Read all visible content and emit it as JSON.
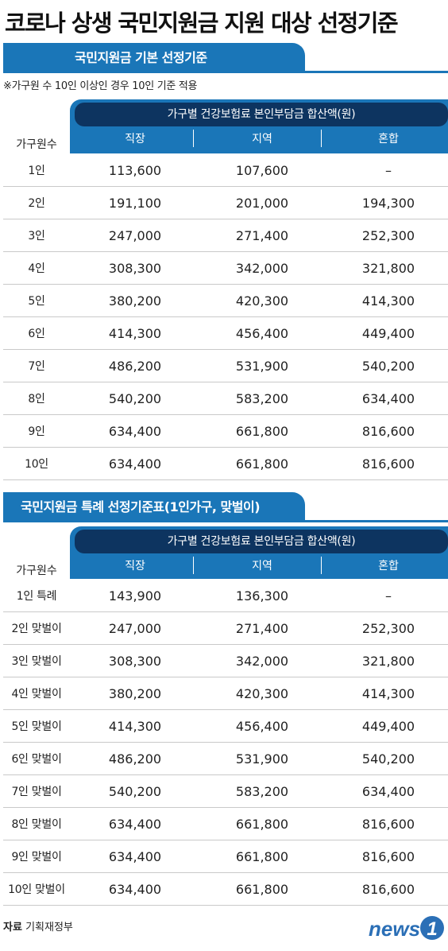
{
  "title": "코로나 상생 국민지원금 지원 대상 선정기준",
  "chart_data": [
    {
      "type": "table",
      "title": "국민지원금 기본 선정기준",
      "note": "※가구원 수 10인 이상인 경우 10인 기준 적용",
      "header_group": "가구별 건강보험료 본인부담금 합산액(원)",
      "row_header": "가구원수",
      "columns": [
        "직장",
        "지역",
        "혼합"
      ],
      "rows": [
        {
          "label": "1인",
          "values": [
            "113,600",
            "107,600",
            "–"
          ]
        },
        {
          "label": "2인",
          "values": [
            "191,100",
            "201,000",
            "194,300"
          ]
        },
        {
          "label": "3인",
          "values": [
            "247,000",
            "271,400",
            "252,300"
          ]
        },
        {
          "label": "4인",
          "values": [
            "308,300",
            "342,000",
            "321,800"
          ]
        },
        {
          "label": "5인",
          "values": [
            "380,200",
            "420,300",
            "414,300"
          ]
        },
        {
          "label": "6인",
          "values": [
            "414,300",
            "456,400",
            "449,400"
          ]
        },
        {
          "label": "7인",
          "values": [
            "486,200",
            "531,900",
            "540,200"
          ]
        },
        {
          "label": "8인",
          "values": [
            "540,200",
            "583,200",
            "634,400"
          ]
        },
        {
          "label": "9인",
          "values": [
            "634,400",
            "661,800",
            "816,600"
          ]
        },
        {
          "label": "10인",
          "values": [
            "634,400",
            "661,800",
            "816,600"
          ]
        }
      ]
    },
    {
      "type": "table",
      "title": "국민지원금 특례 선정기준표(1인가구, 맞벌이)",
      "header_group": "가구별 건강보험료 본인부담금 합산액(원)",
      "row_header": "가구원수",
      "columns": [
        "직장",
        "지역",
        "혼합"
      ],
      "rows": [
        {
          "label": "1인 특례",
          "values": [
            "143,900",
            "136,300",
            "–"
          ]
        },
        {
          "label": "2인 맞벌이",
          "values": [
            "247,000",
            "271,400",
            "252,300"
          ]
        },
        {
          "label": "3인 맞벌이",
          "values": [
            "308,300",
            "342,000",
            "321,800"
          ]
        },
        {
          "label": "4인 맞벌이",
          "values": [
            "380,200",
            "420,300",
            "414,300"
          ]
        },
        {
          "label": "5인 맞벌이",
          "values": [
            "414,300",
            "456,400",
            "449,400"
          ]
        },
        {
          "label": "6인 맞벌이",
          "values": [
            "486,200",
            "531,900",
            "540,200"
          ]
        },
        {
          "label": "7인 맞벌이",
          "values": [
            "540,200",
            "583,200",
            "634,400"
          ]
        },
        {
          "label": "8인 맞벌이",
          "values": [
            "634,400",
            "661,800",
            "816,600"
          ]
        },
        {
          "label": "9인 맞벌이",
          "values": [
            "634,400",
            "661,800",
            "816,600"
          ]
        },
        {
          "label": "10인 맞벌이",
          "values": [
            "634,400",
            "661,800",
            "816,600"
          ]
        }
      ]
    }
  ],
  "source": {
    "label": "자료",
    "text": "기획재정부"
  },
  "logo": {
    "text": "news",
    "mark": "1"
  },
  "colors": {
    "accent": "#1a76b8",
    "header_dark": "#0d3460",
    "logo": "#2b6fb6"
  }
}
